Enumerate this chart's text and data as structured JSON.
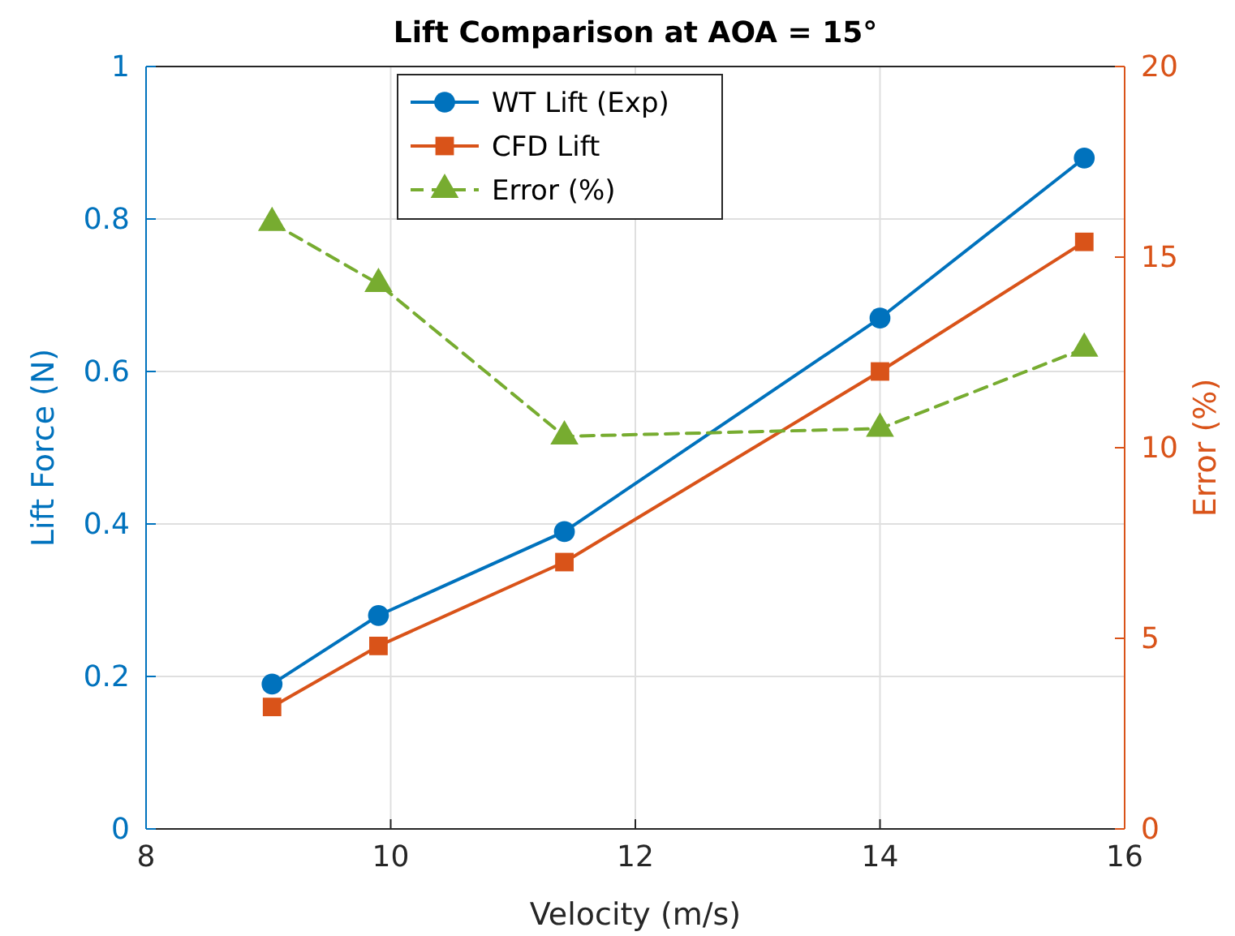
{
  "chart_data": {
    "type": "line",
    "title": "Lift Comparison at AOA = 15°",
    "xlabel": "Velocity (m/s)",
    "ylabel": "Lift Force (N)",
    "y2label": "Error (%)",
    "x": [
      9.03,
      9.9,
      11.42,
      14,
      15.67
    ],
    "series": [
      {
        "name": "WT Lift (Exp)",
        "color": "#0072bd",
        "values": [
          0.19,
          0.28,
          0.39,
          0.67,
          0.88
        ],
        "marker": "circle",
        "line_style": "solid"
      },
      {
        "name": "CFD Lift",
        "color": "#d95319",
        "values": [
          0.16,
          0.24,
          0.35,
          0.6,
          0.77
        ],
        "marker": "square",
        "line_style": "solid"
      },
      {
        "name": "Error (%)",
        "color": "#77ac30",
        "values": [
          15.9,
          14.3,
          10.3,
          10.5,
          12.6
        ],
        "marker": "triangle",
        "line_style": "dashed",
        "axis": "y2"
      }
    ],
    "xlim": [
      8,
      16
    ],
    "xticks": [
      8,
      10,
      12,
      14,
      16
    ],
    "ylim": [
      0,
      1
    ],
    "yticks": [
      0,
      0.2,
      0.4,
      0.6,
      0.8,
      1
    ],
    "y2lim": [
      0,
      20
    ],
    "y2ticks": [
      0,
      5,
      10,
      15,
      20
    ],
    "grid": true,
    "legend": "top"
  }
}
